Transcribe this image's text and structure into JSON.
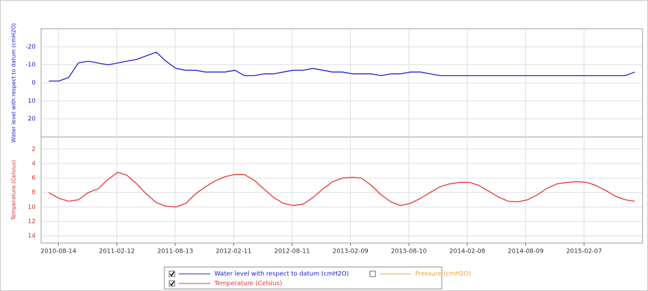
{
  "chart_data": {
    "type": "line",
    "ylabel": "Water level with respect to datum (cmH2O)",
    "y2label": "Temperature (Celsius)",
    "x": [
      "2010-07-15",
      "2010-08-15",
      "2010-09-15",
      "2010-10-15",
      "2010-11-15",
      "2010-12-15",
      "2011-01-15",
      "2011-02-15",
      "2011-03-15",
      "2011-04-15",
      "2011-05-15",
      "2011-06-15",
      "2011-07-15",
      "2011-08-15",
      "2011-09-15",
      "2011-10-15",
      "2011-11-15",
      "2011-12-15",
      "2012-01-15",
      "2012-02-15",
      "2012-03-15",
      "2012-04-15",
      "2012-05-15",
      "2012-06-15",
      "2012-07-15",
      "2012-08-15",
      "2012-09-15",
      "2012-10-15",
      "2012-11-15",
      "2012-12-15",
      "2013-01-15",
      "2013-02-15",
      "2013-03-15",
      "2013-04-15",
      "2013-05-15",
      "2013-06-15",
      "2013-07-15",
      "2013-08-15",
      "2013-09-15",
      "2013-10-15",
      "2013-11-15",
      "2013-12-15",
      "2014-01-15",
      "2014-02-15",
      "2014-03-15",
      "2014-04-15",
      "2014-05-15",
      "2014-06-15",
      "2014-07-15",
      "2014-08-15",
      "2014-09-15",
      "2014-10-15",
      "2014-11-15",
      "2014-12-15",
      "2015-01-15",
      "2015-02-15",
      "2015-03-15",
      "2015-04-15",
      "2015-05-15",
      "2015-06-15",
      "2015-07-15"
    ],
    "xlim": [
      "2010-06-21",
      "2015-08-08"
    ],
    "xticks": [
      "2010-08-14",
      "2011-02-12",
      "2011-08-13",
      "2012-02-11",
      "2012-08-11",
      "2013-02-09",
      "2013-08-10",
      "2014-02-08",
      "2014-08-09",
      "2015-02-07"
    ],
    "ylim": [
      30,
      -30
    ],
    "yticks": [
      -20,
      -10,
      0,
      10,
      20
    ],
    "y2lim": [
      15,
      0.3
    ],
    "y2ticks": [
      2,
      4,
      6,
      8,
      10,
      12,
      14
    ],
    "grid": true,
    "series": [
      {
        "name": "Water level with respect to datum (cmH2O)",
        "color": "#1a1acc",
        "checked": true,
        "axis": "y",
        "values": [
          -1,
          -1,
          -3,
          -11,
          -12,
          -11,
          -10,
          -11,
          -12,
          -13,
          -15,
          -17,
          -12,
          -8,
          -7,
          -7,
          -6,
          -6,
          -6,
          -7,
          -4,
          -4,
          -5,
          -5,
          -6,
          -7,
          -7,
          -8,
          -7,
          -6,
          -6,
          -5,
          -5,
          -5,
          -4,
          -5,
          -5,
          -6,
          -6,
          -5,
          -4,
          -4,
          -4,
          -4,
          -4,
          -4,
          -4,
          -4,
          -4,
          -4,
          -4,
          -4,
          -4,
          -4,
          -4,
          -4,
          -4,
          -4,
          -4,
          -4,
          -6
        ]
      },
      {
        "name": "Temperature (Celsius)",
        "color": "#e03030",
        "checked": true,
        "axis": "y2",
        "values": [
          8,
          8.8,
          9.2,
          9,
          8,
          7.5,
          6.2,
          5.2,
          5.6,
          6.8,
          8.2,
          9.4,
          9.9,
          10,
          9.5,
          8.2,
          7.2,
          6.4,
          5.8,
          5.5,
          5.5,
          6.3,
          7.5,
          8.7,
          9.5,
          9.8,
          9.6,
          8.7,
          7.5,
          6.5,
          6,
          5.9,
          6,
          7,
          8.3,
          9.3,
          9.8,
          9.5,
          8.8,
          8,
          7.2,
          6.8,
          6.6,
          6.6,
          7,
          7.8,
          8.6,
          9.2,
          9.3,
          9,
          8.3,
          7.4,
          6.8,
          6.6,
          6.5,
          6.6,
          7,
          7.7,
          8.5,
          9,
          9.2
        ]
      }
    ],
    "hidden_series": [
      {
        "name": "Pressure (cmH2O)",
        "color": "#e8a030",
        "checked": false
      }
    ]
  }
}
